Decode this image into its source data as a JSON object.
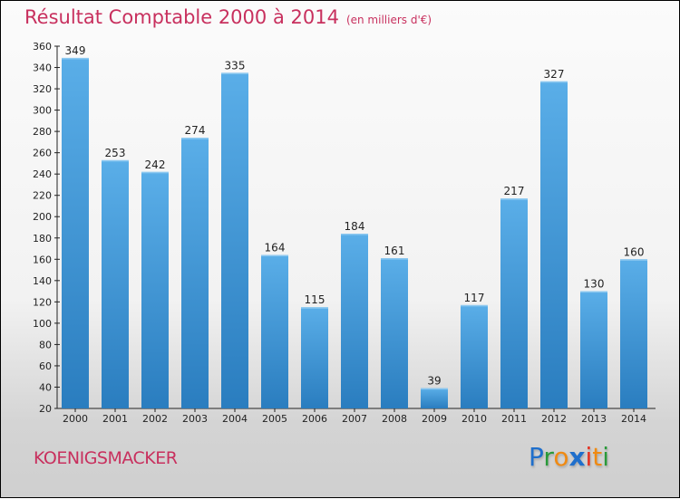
{
  "title": "Résultat Comptable 2000 à 2014",
  "subtitle": "(en milliers d'€)",
  "commune": "KOENIGSMACKER",
  "logo": {
    "letters": [
      "P",
      "r",
      "o",
      "x",
      "i",
      "t",
      "i"
    ],
    "colors": [
      "#1f6fcc",
      "#2a9a3a",
      "#f08a12",
      "#1f6fcc",
      "#e53020",
      "#f08a12",
      "#2a9a3a"
    ]
  },
  "colors": {
    "bar_light": "#5aaee8",
    "bar_dark": "#2c7fc0",
    "title": "#c8305e"
  },
  "chart_data": {
    "type": "bar",
    "title": "Résultat Comptable 2000 à 2014",
    "categories": [
      "2000",
      "2001",
      "2002",
      "2003",
      "2004",
      "2005",
      "2006",
      "2007",
      "2008",
      "2009",
      "2010",
      "2011",
      "2012",
      "2013",
      "2014"
    ],
    "values": [
      349,
      253,
      242,
      274,
      335,
      164,
      115,
      184,
      161,
      39,
      117,
      217,
      327,
      130,
      160
    ],
    "ylim": [
      20,
      360
    ],
    "yticks": [
      20,
      40,
      60,
      80,
      100,
      120,
      140,
      160,
      180,
      200,
      220,
      240,
      260,
      280,
      300,
      320,
      340,
      360
    ],
    "xlabel": "",
    "ylabel": "",
    "grid": false
  }
}
